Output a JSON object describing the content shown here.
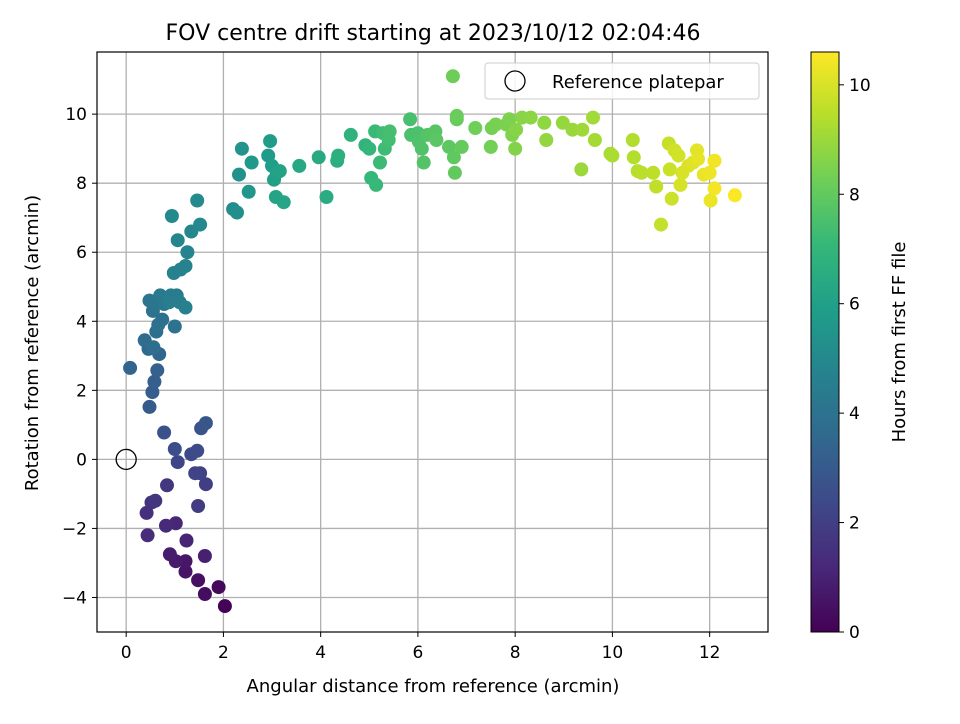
{
  "chart_data": {
    "type": "scatter",
    "title": "FOV centre drift starting at 2023/10/12 02:04:46",
    "xlabel": "Angular distance from reference (arcmin)",
    "ylabel": "Rotation from reference (arcmin)",
    "xlim": [
      -0.6,
      13.2
    ],
    "ylim": [
      -5.0,
      11.8
    ],
    "xticks": [
      0,
      2,
      4,
      6,
      8,
      10,
      12
    ],
    "yticks": [
      -4,
      -2,
      0,
      2,
      4,
      6,
      8,
      10
    ],
    "grid": true,
    "legend": {
      "placement": "top-right",
      "entries": [
        "Reference platepar"
      ]
    },
    "reference_point": {
      "x": 0,
      "y": 0,
      "label": "Reference platepar"
    },
    "colorbar": {
      "label": "Hours from first FF file",
      "range": [
        0,
        10.6
      ],
      "ticks": [
        0,
        2,
        4,
        6,
        8,
        10
      ],
      "colormap": "viridis"
    },
    "series": [
      {
        "points": [
          [
            2.03,
            -4.25,
            0.05
          ],
          [
            1.9,
            -3.7,
            0.2
          ],
          [
            1.62,
            -3.9,
            0.35
          ],
          [
            1.48,
            -3.5,
            0.45
          ],
          [
            1.22,
            -3.25,
            0.55
          ],
          [
            1.22,
            -2.95,
            0.65
          ],
          [
            1.02,
            -2.95,
            0.75
          ],
          [
            0.9,
            -2.75,
            0.85
          ],
          [
            1.62,
            -2.8,
            0.95
          ],
          [
            1.24,
            -2.35,
            1.05
          ],
          [
            1.02,
            -1.85,
            1.15
          ],
          [
            0.82,
            -1.92,
            1.25
          ],
          [
            0.44,
            -2.2,
            1.35
          ],
          [
            0.42,
            -1.55,
            1.45
          ],
          [
            0.52,
            -1.25,
            1.55
          ],
          [
            0.6,
            -1.2,
            1.65
          ],
          [
            0.84,
            -0.75,
            1.75
          ],
          [
            1.48,
            -1.35,
            1.85
          ],
          [
            1.64,
            -0.72,
            1.95
          ],
          [
            1.52,
            -0.4,
            2.05
          ],
          [
            1.42,
            -0.4,
            2.15
          ],
          [
            1.06,
            -0.08,
            2.25
          ],
          [
            1.34,
            0.15,
            2.35
          ],
          [
            1.46,
            0.25,
            2.45
          ],
          [
            1.0,
            0.3,
            2.55
          ],
          [
            0.78,
            0.78,
            2.65
          ],
          [
            1.54,
            0.9,
            2.75
          ],
          [
            1.64,
            1.05,
            2.85
          ],
          [
            0.48,
            1.52,
            3.0
          ],
          [
            0.54,
            1.95,
            3.1
          ],
          [
            0.58,
            2.25,
            3.2
          ],
          [
            0.64,
            2.58,
            3.3
          ],
          [
            0.08,
            2.65,
            3.4
          ],
          [
            0.68,
            3.05,
            3.5
          ],
          [
            0.46,
            3.2,
            3.6
          ],
          [
            0.38,
            3.45,
            3.7
          ],
          [
            0.56,
            3.25,
            3.8
          ],
          [
            0.62,
            3.7,
            3.85
          ],
          [
            0.66,
            3.9,
            3.9
          ],
          [
            0.74,
            4.05,
            3.95
          ],
          [
            1.0,
            3.85,
            4.0
          ],
          [
            0.55,
            4.3,
            4.05
          ],
          [
            0.48,
            4.6,
            4.1
          ],
          [
            0.66,
            4.55,
            4.15
          ],
          [
            0.78,
            4.5,
            4.2
          ],
          [
            0.86,
            4.6,
            4.25
          ],
          [
            0.96,
            4.65,
            4.3
          ],
          [
            0.7,
            4.75,
            4.35
          ],
          [
            0.92,
            4.75,
            4.4
          ],
          [
            1.04,
            4.75,
            4.45
          ],
          [
            0.88,
            4.55,
            4.5
          ],
          [
            1.1,
            4.55,
            4.55
          ],
          [
            1.22,
            4.4,
            4.6
          ],
          [
            0.98,
            5.4,
            4.65
          ],
          [
            1.12,
            5.5,
            4.7
          ],
          [
            1.22,
            5.6,
            4.75
          ],
          [
            1.26,
            6.0,
            4.8
          ],
          [
            1.06,
            6.35,
            4.85
          ],
          [
            1.34,
            6.6,
            4.9
          ],
          [
            1.52,
            6.8,
            4.95
          ],
          [
            0.94,
            7.05,
            5.0
          ],
          [
            1.46,
            7.5,
            5.05
          ],
          [
            2.2,
            7.25,
            5.15
          ],
          [
            2.28,
            7.15,
            5.25
          ],
          [
            2.32,
            8.25,
            5.35
          ],
          [
            2.38,
            9.0,
            5.45
          ],
          [
            2.52,
            7.75,
            5.55
          ],
          [
            2.58,
            8.6,
            5.65
          ],
          [
            2.92,
            8.8,
            5.75
          ],
          [
            2.96,
            9.22,
            5.85
          ],
          [
            3.0,
            8.5,
            5.95
          ],
          [
            3.04,
            8.1,
            6.0
          ],
          [
            3.1,
            8.3,
            6.05
          ],
          [
            3.16,
            8.35,
            6.1
          ],
          [
            3.08,
            7.6,
            6.15
          ],
          [
            3.24,
            7.45,
            6.2
          ],
          [
            3.56,
            8.5,
            6.3
          ],
          [
            3.96,
            8.75,
            6.4
          ],
          [
            4.12,
            7.6,
            6.5
          ],
          [
            4.34,
            8.65,
            6.6
          ],
          [
            4.36,
            8.8,
            6.7
          ],
          [
            4.62,
            9.4,
            6.8
          ],
          [
            4.92,
            9.1,
            6.9
          ],
          [
            5.0,
            9.0,
            7.0
          ],
          [
            5.04,
            8.15,
            7.05
          ],
          [
            5.14,
            7.95,
            7.1
          ],
          [
            5.12,
            9.5,
            7.15
          ],
          [
            5.22,
            8.6,
            7.2
          ],
          [
            5.32,
            9.0,
            7.25
          ],
          [
            5.28,
            9.45,
            7.3
          ],
          [
            5.4,
            9.25,
            7.35
          ],
          [
            5.42,
            9.5,
            7.4
          ],
          [
            5.84,
            9.85,
            7.45
          ],
          [
            5.86,
            9.4,
            7.5
          ],
          [
            6.0,
            9.45,
            7.55
          ],
          [
            6.02,
            9.2,
            7.6
          ],
          [
            6.08,
            9.0,
            7.65
          ],
          [
            6.12,
            8.6,
            7.7
          ],
          [
            6.2,
            9.4,
            7.75
          ],
          [
            6.36,
            9.5,
            7.8
          ],
          [
            6.38,
            9.25,
            7.85
          ],
          [
            6.64,
            9.05,
            7.9
          ],
          [
            6.74,
            8.75,
            7.95
          ],
          [
            6.76,
            8.3,
            8.0
          ],
          [
            6.9,
            9.05,
            8.05
          ],
          [
            6.8,
            9.85,
            8.1
          ],
          [
            6.8,
            9.95,
            8.15
          ],
          [
            6.72,
            11.1,
            8.2
          ],
          [
            7.18,
            9.6,
            8.25
          ],
          [
            7.5,
            9.05,
            8.3
          ],
          [
            7.52,
            9.6,
            8.35
          ],
          [
            7.6,
            9.7,
            8.4
          ],
          [
            7.82,
            9.7,
            8.45
          ],
          [
            7.88,
            9.85,
            8.5
          ],
          [
            7.94,
            9.4,
            8.55
          ],
          [
            8.0,
            9.0,
            8.6
          ],
          [
            8.02,
            9.55,
            8.65
          ],
          [
            8.14,
            9.9,
            8.7
          ],
          [
            8.32,
            9.9,
            8.75
          ],
          [
            8.6,
            9.75,
            8.8
          ],
          [
            8.64,
            9.25,
            8.85
          ],
          [
            8.98,
            9.75,
            8.9
          ],
          [
            9.18,
            9.55,
            8.95
          ],
          [
            9.36,
            8.4,
            9.0
          ],
          [
            9.38,
            9.55,
            9.05
          ],
          [
            9.6,
            9.9,
            9.1
          ],
          [
            9.64,
            9.25,
            9.15
          ],
          [
            9.96,
            8.85,
            9.2
          ],
          [
            10.0,
            8.8,
            9.25
          ],
          [
            10.42,
            9.25,
            9.35
          ],
          [
            10.44,
            8.75,
            9.4
          ],
          [
            10.52,
            8.35,
            9.45
          ],
          [
            10.6,
            8.3,
            9.5
          ],
          [
            10.84,
            8.3,
            9.55
          ],
          [
            10.9,
            7.9,
            9.6
          ],
          [
            11.0,
            6.8,
            9.65
          ],
          [
            11.16,
            9.15,
            9.7
          ],
          [
            11.18,
            8.4,
            9.75
          ],
          [
            11.22,
            7.55,
            9.8
          ],
          [
            11.28,
            8.95,
            9.85
          ],
          [
            11.36,
            8.8,
            9.9
          ],
          [
            11.4,
            7.95,
            9.95
          ],
          [
            11.44,
            8.3,
            10.0
          ],
          [
            11.56,
            8.5,
            10.05
          ],
          [
            11.66,
            8.6,
            10.1
          ],
          [
            11.74,
            8.95,
            10.15
          ],
          [
            11.76,
            8.7,
            10.2
          ],
          [
            11.88,
            8.25,
            10.25
          ],
          [
            12.02,
            7.5,
            10.3
          ],
          [
            12.0,
            8.3,
            10.35
          ],
          [
            12.1,
            8.65,
            10.4
          ],
          [
            12.1,
            7.85,
            10.45
          ],
          [
            12.52,
            7.65,
            10.55
          ]
        ]
      }
    ]
  }
}
